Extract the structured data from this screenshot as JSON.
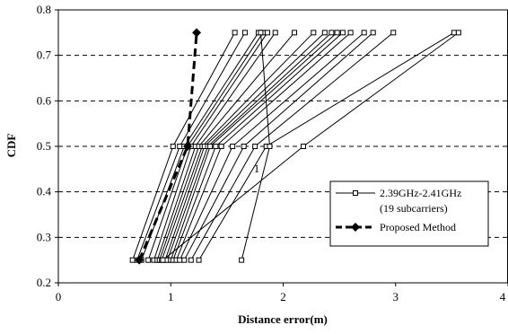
{
  "chart_data": {
    "type": "line",
    "xlabel": "Distance error(m)",
    "ylabel": "CDF",
    "xlim": [
      0,
      4
    ],
    "ylim": [
      0.2,
      0.8
    ],
    "xticks": [
      0,
      1,
      2,
      3,
      4
    ],
    "yticks": [
      0.2,
      0.3,
      0.4,
      0.5,
      0.6,
      0.7,
      0.8
    ],
    "grid": "horizontal-dashed",
    "legend_position": "right",
    "annotations": [
      {
        "text": "1",
        "x": 1.78,
        "y": 0.453
      }
    ],
    "series": [
      {
        "name": "2.39GHz-2.41GHz\n(19 subcarriers)",
        "legend_lines": [
          "2.39GHz-2.41GHz",
          "(19 subcarriers)"
        ],
        "marker": "open-square",
        "line": "solid-thin",
        "color": "#000000",
        "curves": [
          [
            0.66,
            1.02,
            1.57
          ],
          [
            0.7,
            1.08,
            1.66
          ],
          [
            0.74,
            1.12,
            1.78
          ],
          [
            0.8,
            1.15,
            1.82
          ],
          [
            0.85,
            1.18,
            1.86
          ],
          [
            0.88,
            1.22,
            1.93
          ],
          [
            0.9,
            1.25,
            2.1
          ],
          [
            0.92,
            1.28,
            2.27
          ],
          [
            0.95,
            1.3,
            2.37
          ],
          [
            0.97,
            1.33,
            2.43
          ],
          [
            1.0,
            1.35,
            2.48
          ],
          [
            1.02,
            1.4,
            2.53
          ],
          [
            1.05,
            1.45,
            2.6
          ],
          [
            1.08,
            1.55,
            2.72
          ],
          [
            1.12,
            1.65,
            2.8
          ],
          [
            1.18,
            1.75,
            2.98
          ],
          [
            1.25,
            1.85,
            3.52
          ],
          [
            1.63,
            1.88,
            1.8
          ],
          [
            0.93,
            2.18,
            3.56
          ]
        ]
      },
      {
        "name": "Proposed Method",
        "marker": "filled-diamond",
        "line": "bold-dashed",
        "color": "#000000",
        "curves": [
          [
            0.72,
            1.15,
            1.23
          ]
        ]
      }
    ],
    "y_levels": [
      0.25,
      0.5,
      0.75
    ]
  }
}
